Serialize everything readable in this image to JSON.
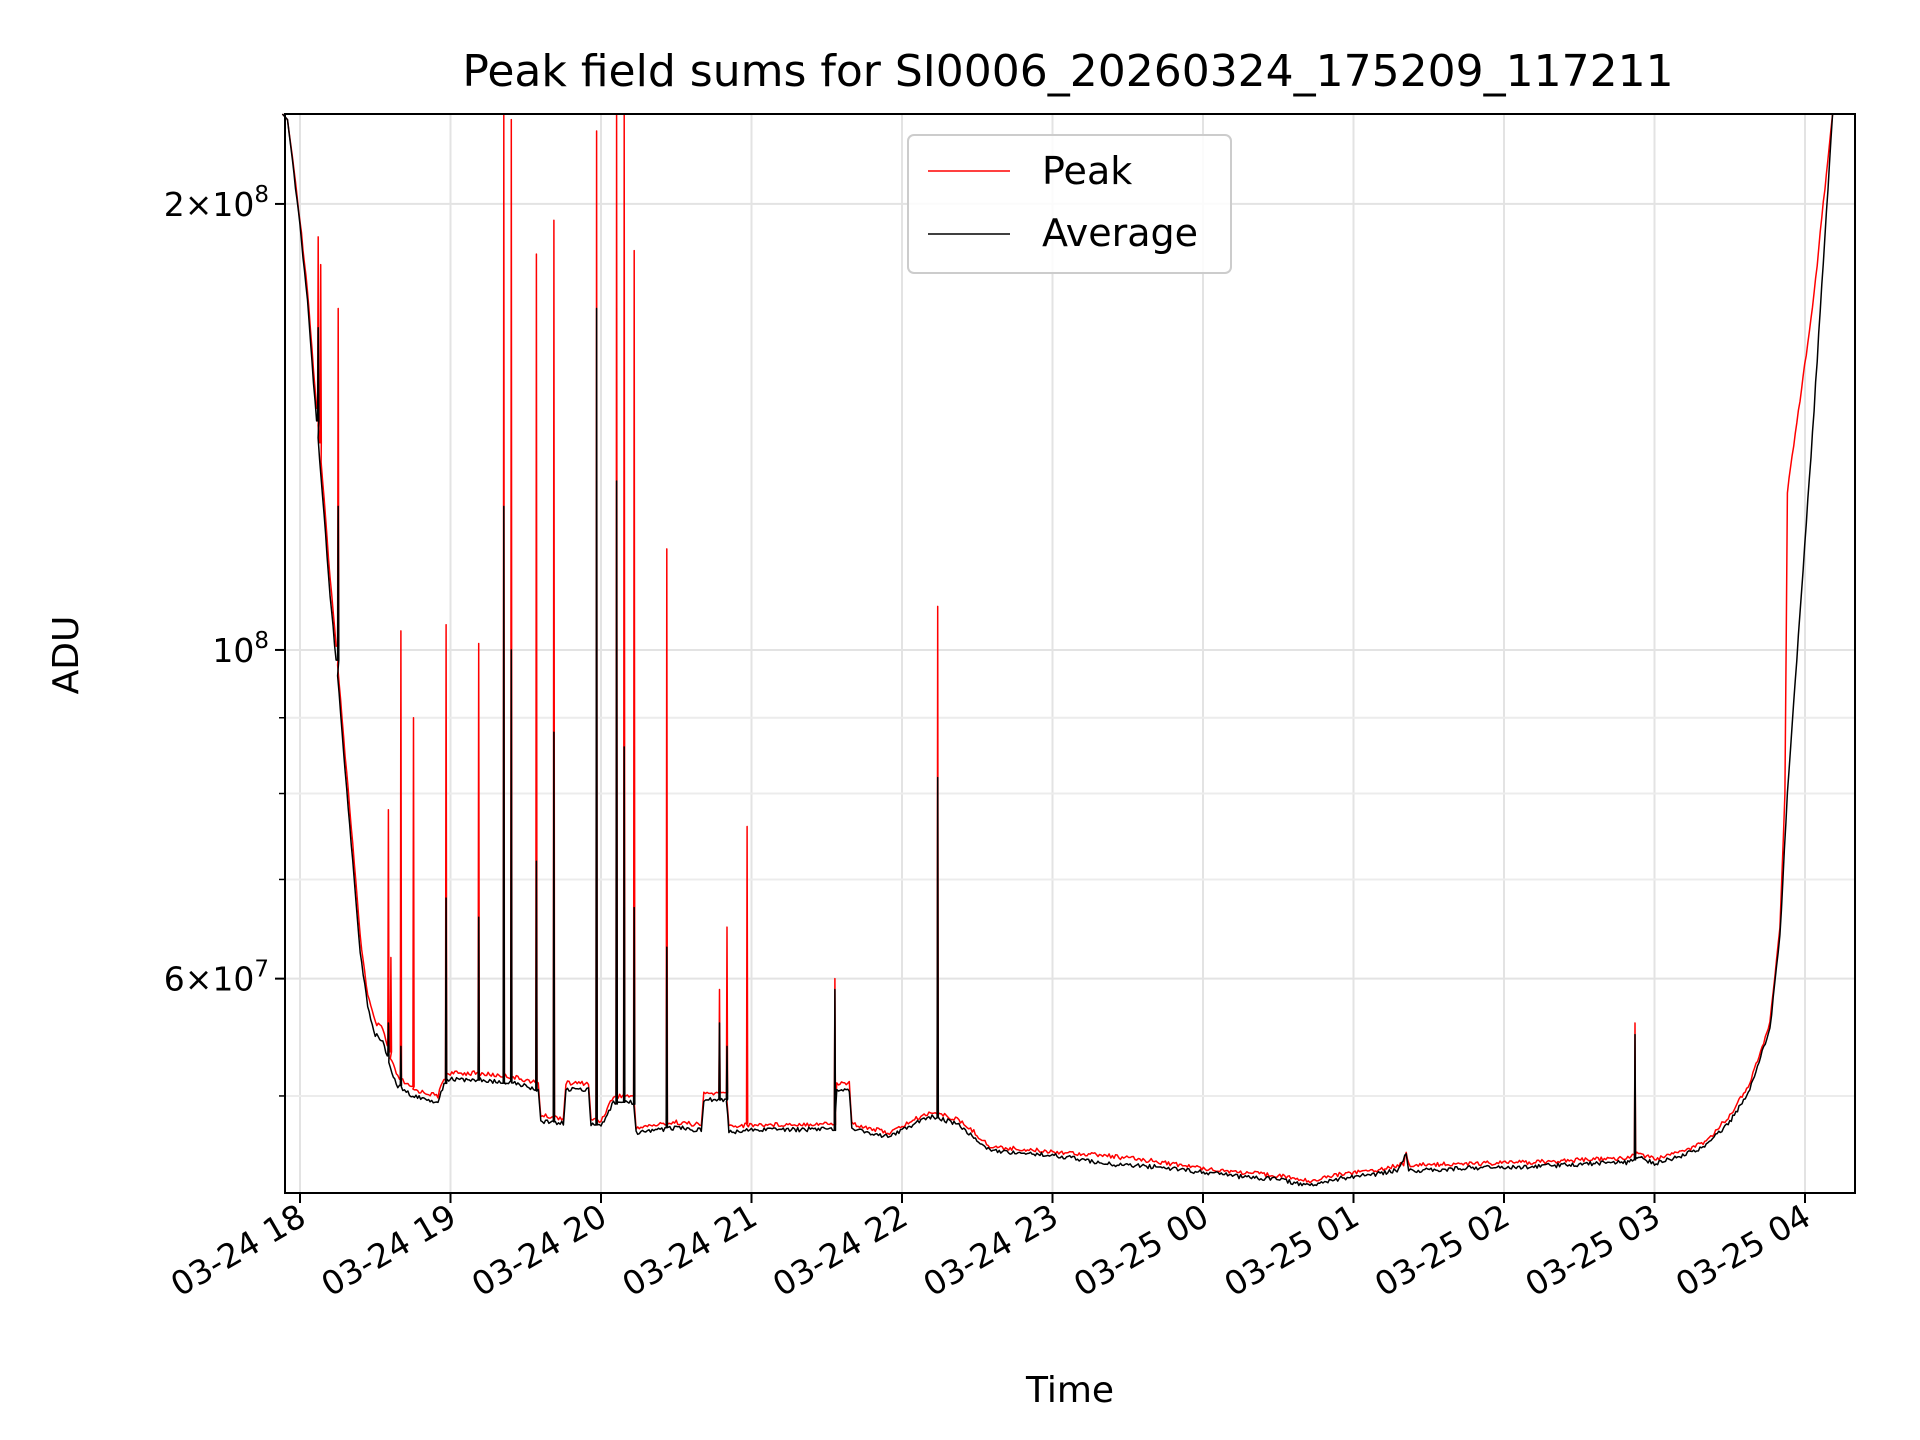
{
  "chart_data": {
    "type": "line",
    "title": "Peak field sums for SI0006_20260324_175209_117211",
    "xlabel": "Time",
    "ylabel": "ADU",
    "yscale": "log",
    "ylim": [
      43000000,
      230000000
    ],
    "xlim": [
      "2026-03-24 17:52",
      "2026-03-25 04:20"
    ],
    "grid": true,
    "legend_position": "upper center",
    "x_tick_labels": [
      "03-24 18",
      "03-24 19",
      "03-24 20",
      "03-24 21",
      "03-24 22",
      "03-24 23",
      "03-25 00",
      "03-25 01",
      "03-25 02",
      "03-25 03",
      "03-25 04"
    ],
    "y_tick_labels": [
      {
        "value": 200000000,
        "base": "2×10",
        "exp": "8"
      },
      {
        "value": 100000000,
        "base": "10",
        "exp": "8"
      },
      {
        "value": 60000000,
        "base": "6×10",
        "exp": "7"
      }
    ],
    "series": [
      {
        "name": "Peak",
        "color": "#ff0000",
        "points": [
          [
            "2026-03-24 17:53",
            230000000
          ],
          [
            "2026-03-24 17:55",
            228000000
          ],
          [
            "2026-03-24 17:57",
            215000000
          ],
          [
            "2026-03-24 18:00",
            195000000
          ],
          [
            "2026-03-24 18:03",
            175000000
          ],
          [
            "2026-03-24 18:06",
            150000000
          ],
          [
            "2026-03-24 18:09",
            130000000
          ],
          [
            "2026-03-24 18:12",
            112000000
          ],
          [
            "2026-03-24 18:15",
            98000000
          ],
          [
            "2026-03-24 18:18",
            85000000
          ],
          [
            "2026-03-24 18:21",
            74000000
          ],
          [
            "2026-03-24 18:24",
            64000000
          ],
          [
            "2026-03-24 18:27",
            58500000
          ],
          [
            "2026-03-24 18:30",
            56000000
          ],
          [
            "2026-03-24 18:33",
            55500000
          ],
          [
            "2026-03-24 18:36",
            53000000
          ],
          [
            "2026-03-24 18:39",
            51500000
          ],
          [
            "2026-03-24 18:45",
            50500000
          ],
          [
            "2026-03-24 18:55",
            50000000
          ],
          [
            "2026-03-24 18:58",
            51800000
          ],
          [
            "2026-03-24 19:10",
            51800000
          ],
          [
            "2026-03-24 19:25",
            51500000
          ],
          [
            "2026-03-24 19:35",
            51000000
          ],
          [
            "2026-03-24 19:36",
            48500000
          ],
          [
            "2026-03-24 19:45",
            48300000
          ],
          [
            "2026-03-24 19:46",
            51000000
          ],
          [
            "2026-03-24 19:55",
            51000000
          ],
          [
            "2026-03-24 19:56",
            48200000
          ],
          [
            "2026-03-24 20:00",
            48100000
          ],
          [
            "2026-03-24 20:05",
            50000000
          ],
          [
            "2026-03-24 20:13",
            50000000
          ],
          [
            "2026-03-24 20:14",
            47600000
          ],
          [
            "2026-03-24 20:30",
            48000000
          ],
          [
            "2026-03-24 20:40",
            47800000
          ],
          [
            "2026-03-24 20:41",
            50200000
          ],
          [
            "2026-03-24 20:50",
            50200000
          ],
          [
            "2026-03-24 20:51",
            47700000
          ],
          [
            "2026-03-24 21:00",
            47800000
          ],
          [
            "2026-03-24 21:33",
            47900000
          ],
          [
            "2026-03-24 21:34",
            51000000
          ],
          [
            "2026-03-24 21:39",
            51000000
          ],
          [
            "2026-03-24 21:40",
            47900000
          ],
          [
            "2026-03-24 21:55",
            47200000
          ],
          [
            "2026-03-24 22:05",
            48200000
          ],
          [
            "2026-03-24 22:12",
            48800000
          ],
          [
            "2026-03-24 22:22",
            48200000
          ],
          [
            "2026-03-24 22:28",
            47400000
          ],
          [
            "2026-03-24 22:35",
            46200000
          ],
          [
            "2026-03-24 22:50",
            46000000
          ],
          [
            "2026-03-24 23:05",
            45800000
          ],
          [
            "2026-03-24 23:20",
            45600000
          ],
          [
            "2026-03-24 23:40",
            45200000
          ],
          [
            "2026-03-24 23:55",
            44800000
          ],
          [
            "2026-03-25 00:15",
            44400000
          ],
          [
            "2026-03-25 00:30",
            44200000
          ],
          [
            "2026-03-25 00:42",
            43800000
          ],
          [
            "2026-03-25 00:55",
            44300000
          ],
          [
            "2026-03-25 01:10",
            44600000
          ],
          [
            "2026-03-25 01:20",
            45000000
          ],
          [
            "2026-03-25 01:21",
            45800000
          ],
          [
            "2026-03-25 01:22",
            44900000
          ],
          [
            "2026-03-25 01:45",
            45000000
          ],
          [
            "2026-03-25 02:10",
            45100000
          ],
          [
            "2026-03-25 02:35",
            45300000
          ],
          [
            "2026-03-25 02:50",
            45400000
          ],
          [
            "2026-03-25 02:53",
            45800000
          ],
          [
            "2026-03-25 03:00",
            45300000
          ],
          [
            "2026-03-25 03:10",
            45800000
          ],
          [
            "2026-03-25 03:20",
            46500000
          ],
          [
            "2026-03-25 03:30",
            48500000
          ],
          [
            "2026-03-25 03:38",
            51000000
          ],
          [
            "2026-03-25 03:46",
            56000000
          ],
          [
            "2026-03-25 03:50",
            65000000
          ],
          [
            "2026-03-25 03:52",
            80000000
          ],
          [
            "2026-03-25 03:53",
            128000000
          ],
          [
            "2026-03-25 04:03",
            170000000
          ],
          [
            "2026-03-25 04:11",
            230000000
          ]
        ],
        "spikes": [
          [
            "2026-03-24 18:07",
            190000000
          ],
          [
            "2026-03-24 18:08",
            182000000
          ],
          [
            "2026-03-24 18:15",
            170000000
          ],
          [
            "2026-03-24 18:35",
            78000000
          ],
          [
            "2026-03-24 18:36",
            62000000
          ],
          [
            "2026-03-24 18:40",
            103000000
          ],
          [
            "2026-03-24 18:45",
            90000000
          ],
          [
            "2026-03-24 18:58",
            104000000
          ],
          [
            "2026-03-24 19:11",
            101000000
          ],
          [
            "2026-03-24 19:21",
            230000000
          ],
          [
            "2026-03-24 19:24",
            228000000
          ],
          [
            "2026-03-24 19:34",
            185000000
          ],
          [
            "2026-03-24 19:41",
            195000000
          ],
          [
            "2026-03-24 19:58",
            224000000
          ],
          [
            "2026-03-24 20:06",
            230000000
          ],
          [
            "2026-03-24 20:09",
            230000000
          ],
          [
            "2026-03-24 20:13",
            186000000
          ],
          [
            "2026-03-24 20:26",
            117000000
          ],
          [
            "2026-03-24 20:47",
            59000000
          ],
          [
            "2026-03-24 20:50",
            65000000
          ],
          [
            "2026-03-24 20:58",
            76000000
          ],
          [
            "2026-03-24 21:33",
            60000000
          ],
          [
            "2026-03-24 22:14",
            107000000
          ],
          [
            "2026-03-25 02:52",
            56000000
          ]
        ]
      },
      {
        "name": "Average",
        "color": "#000000",
        "points": [
          [
            "2026-03-24 17:53",
            230000000
          ],
          [
            "2026-03-24 17:55",
            228000000
          ],
          [
            "2026-03-24 17:57",
            214000000
          ],
          [
            "2026-03-24 18:00",
            193000000
          ],
          [
            "2026-03-24 18:03",
            172000000
          ],
          [
            "2026-03-24 18:06",
            147000000
          ],
          [
            "2026-03-24 18:09",
            127000000
          ],
          [
            "2026-03-24 18:12",
            109000000
          ],
          [
            "2026-03-24 18:15",
            96000000
          ],
          [
            "2026-03-24 18:18",
            83000000
          ],
          [
            "2026-03-24 18:21",
            72000000
          ],
          [
            "2026-03-24 18:24",
            62500000
          ],
          [
            "2026-03-24 18:27",
            57500000
          ],
          [
            "2026-03-24 18:30",
            55000000
          ],
          [
            "2026-03-24 18:33",
            54500000
          ],
          [
            "2026-03-24 18:36",
            52200000
          ],
          [
            "2026-03-24 18:39",
            50800000
          ],
          [
            "2026-03-24 18:45",
            50000000
          ],
          [
            "2026-03-24 18:55",
            49500000
          ],
          [
            "2026-03-24 18:58",
            51300000
          ],
          [
            "2026-03-24 19:10",
            51300000
          ],
          [
            "2026-03-24 19:25",
            51000000
          ],
          [
            "2026-03-24 19:35",
            50500000
          ],
          [
            "2026-03-24 19:36",
            48100000
          ],
          [
            "2026-03-24 19:45",
            47900000
          ],
          [
            "2026-03-24 19:46",
            50500000
          ],
          [
            "2026-03-24 19:55",
            50500000
          ],
          [
            "2026-03-24 19:56",
            47800000
          ],
          [
            "2026-03-24 20:00",
            47700000
          ],
          [
            "2026-03-24 20:05",
            49500000
          ],
          [
            "2026-03-24 20:13",
            49500000
          ],
          [
            "2026-03-24 20:14",
            47200000
          ],
          [
            "2026-03-24 20:30",
            47600000
          ],
          [
            "2026-03-24 20:40",
            47400000
          ],
          [
            "2026-03-24 20:41",
            49700000
          ],
          [
            "2026-03-24 20:50",
            49700000
          ],
          [
            "2026-03-24 20:51",
            47300000
          ],
          [
            "2026-03-24 21:00",
            47400000
          ],
          [
            "2026-03-24 21:33",
            47500000
          ],
          [
            "2026-03-24 21:34",
            50500000
          ],
          [
            "2026-03-24 21:39",
            50500000
          ],
          [
            "2026-03-24 21:40",
            47500000
          ],
          [
            "2026-03-24 21:55",
            46900000
          ],
          [
            "2026-03-24 22:05",
            47900000
          ],
          [
            "2026-03-24 22:12",
            48400000
          ],
          [
            "2026-03-24 22:22",
            47900000
          ],
          [
            "2026-03-24 22:28",
            47000000
          ],
          [
            "2026-03-24 22:35",
            45900000
          ],
          [
            "2026-03-24 22:50",
            45700000
          ],
          [
            "2026-03-24 23:05",
            45500000
          ],
          [
            "2026-03-24 23:20",
            45000000
          ],
          [
            "2026-03-24 23:40",
            44800000
          ],
          [
            "2026-03-24 23:55",
            44500000
          ],
          [
            "2026-03-25 00:15",
            44100000
          ],
          [
            "2026-03-25 00:30",
            43900000
          ],
          [
            "2026-03-25 00:42",
            43500000
          ],
          [
            "2026-03-25 00:55",
            44000000
          ],
          [
            "2026-03-25 01:10",
            44300000
          ],
          [
            "2026-03-25 01:18",
            44600000
          ],
          [
            "2026-03-25 01:21",
            45800000
          ],
          [
            "2026-03-25 01:22",
            44500000
          ],
          [
            "2026-03-25 01:45",
            44700000
          ],
          [
            "2026-03-25 02:10",
            44800000
          ],
          [
            "2026-03-25 02:35",
            45000000
          ],
          [
            "2026-03-25 02:50",
            45100000
          ],
          [
            "2026-03-25 02:53",
            45500000
          ],
          [
            "2026-03-25 03:00",
            45000000
          ],
          [
            "2026-03-25 03:10",
            45500000
          ],
          [
            "2026-03-25 03:20",
            46200000
          ],
          [
            "2026-03-25 03:30",
            48000000
          ],
          [
            "2026-03-25 03:38",
            50500000
          ],
          [
            "2026-03-25 03:46",
            55500000
          ],
          [
            "2026-03-25 03:50",
            64000000
          ],
          [
            "2026-03-25 03:53",
            80000000
          ],
          [
            "2026-03-25 04:03",
            140000000
          ],
          [
            "2026-03-25 04:11",
            230000000
          ]
        ],
        "spikes": [
          [
            "2026-03-24 18:07",
            165000000
          ],
          [
            "2026-03-24 18:15",
            125000000
          ],
          [
            "2026-03-24 18:35",
            56000000
          ],
          [
            "2026-03-24 18:40",
            54000000
          ],
          [
            "2026-03-24 18:58",
            68000000
          ],
          [
            "2026-03-24 19:11",
            66000000
          ],
          [
            "2026-03-24 19:21",
            125000000
          ],
          [
            "2026-03-24 19:24",
            100000000
          ],
          [
            "2026-03-24 19:34",
            72000000
          ],
          [
            "2026-03-24 19:41",
            88000000
          ],
          [
            "2026-03-24 19:58",
            170000000
          ],
          [
            "2026-03-24 20:06",
            130000000
          ],
          [
            "2026-03-24 20:09",
            86000000
          ],
          [
            "2026-03-24 20:13",
            67000000
          ],
          [
            "2026-03-24 20:26",
            63000000
          ],
          [
            "2026-03-24 20:47",
            56000000
          ],
          [
            "2026-03-24 20:50",
            54000000
          ],
          [
            "2026-03-24 21:33",
            59000000
          ],
          [
            "2026-03-24 22:14",
            82000000
          ],
          [
            "2026-03-25 02:52",
            55000000
          ]
        ]
      }
    ]
  }
}
